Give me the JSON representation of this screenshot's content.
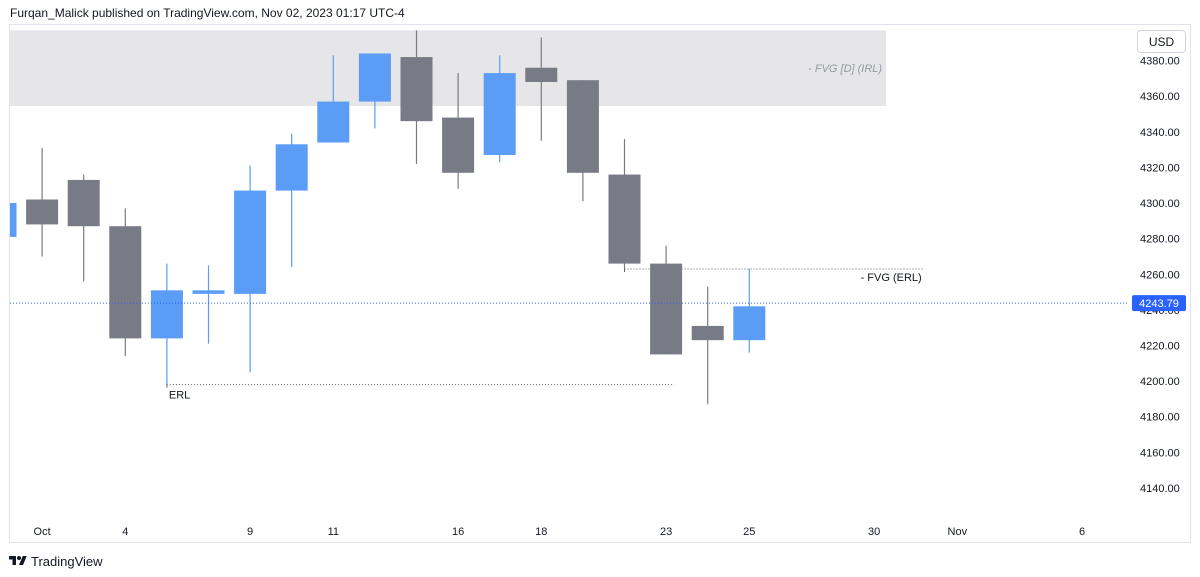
{
  "header": {
    "publisher_text": "Furqan_Malick published on TradingView.com, Nov 02, 2023 01:17 UTC-4"
  },
  "price_scale": {
    "currency_label": "USD"
  },
  "footer": {
    "brand": "TradingView",
    "logo_icon": "tradingview-logo-icon"
  },
  "colors": {
    "bull": "#5b9cf6",
    "bear": "#787b86",
    "zone": "#e6e6e8",
    "text": "#131722",
    "last_price_bg": "#2962ff",
    "last_price_line": "#2962ff"
  },
  "chart_data": {
    "type": "candlestick",
    "title": "",
    "ylim": [
      4122,
      4400
    ],
    "y_ticks": [
      4140,
      4160,
      4180,
      4200,
      4220,
      4240,
      4260,
      4280,
      4300,
      4320,
      4340,
      4360,
      4380
    ],
    "x_ticks": [
      "Oct",
      "4",
      "9",
      "11",
      "16",
      "18",
      "23",
      "25",
      "30",
      "Nov",
      "6"
    ],
    "last_price": 4243.79,
    "candles": [
      {
        "date": "2023-09-29",
        "open": 4281,
        "high": 4300,
        "low": 4281,
        "close": 4300
      },
      {
        "date": "2023-10-02",
        "open": 4302,
        "high": 4331,
        "low": 4270,
        "close": 4288
      },
      {
        "date": "2023-10-03",
        "open": 4313,
        "high": 4316,
        "low": 4256,
        "close": 4287
      },
      {
        "date": "2023-10-04",
        "open": 4287,
        "high": 4297,
        "low": 4214,
        "close": 4224
      },
      {
        "date": "2023-10-05",
        "open": 4224,
        "high": 4266,
        "low": 4198,
        "close": 4251
      },
      {
        "date": "2023-10-06",
        "open": 4249,
        "high": 4265,
        "low": 4221,
        "close": 4251
      },
      {
        "date": "2023-10-09",
        "open": 4249,
        "high": 4321,
        "low": 4205,
        "close": 4307
      },
      {
        "date": "2023-10-10",
        "open": 4307,
        "high": 4339,
        "low": 4264,
        "close": 4333
      },
      {
        "date": "2023-10-11",
        "open": 4334,
        "high": 4383,
        "low": 4334,
        "close": 4357
      },
      {
        "date": "2023-10-12",
        "open": 4357,
        "high": 4384,
        "low": 4342,
        "close": 4384
      },
      {
        "date": "2023-10-13",
        "open": 4382,
        "high": 4397,
        "low": 4322,
        "close": 4346
      },
      {
        "date": "2023-10-16",
        "open": 4348,
        "high": 4373,
        "low": 4308,
        "close": 4317
      },
      {
        "date": "2023-10-17",
        "open": 4327,
        "high": 4383,
        "low": 4323,
        "close": 4373
      },
      {
        "date": "2023-10-18",
        "open": 4376,
        "high": 4393,
        "low": 4335,
        "close": 4368
      },
      {
        "date": "2023-10-19",
        "open": 4369,
        "high": 4369,
        "low": 4301,
        "close": 4317
      },
      {
        "date": "2023-10-20",
        "open": 4316,
        "high": 4336,
        "low": 4263,
        "close": 4266
      },
      {
        "date": "2023-10-23",
        "open": 4266,
        "high": 4276,
        "low": 4215,
        "close": 4215
      },
      {
        "date": "2023-10-24",
        "open": 4231,
        "high": 4253,
        "low": 4187,
        "close": 4223
      },
      {
        "date": "2023-10-25",
        "open": 4223,
        "high": 4263,
        "low": 4216,
        "close": 4242
      }
    ],
    "annotations": [
      {
        "label": "- FVG [D] (IRL)",
        "kind": "zone",
        "from_date": "2023-09-29",
        "to_date": "2023-10-30",
        "low": 4354.5,
        "high": 4397
      },
      {
        "label": "- FVG (ERL)",
        "kind": "dotted-line",
        "from_date": "2023-10-20",
        "to_date": "2023-10-31",
        "price": 4263
      },
      {
        "label": "ERL",
        "kind": "dotted-line",
        "from_date": "2023-10-05",
        "to_date": "2023-10-23",
        "price": 4198
      }
    ]
  }
}
